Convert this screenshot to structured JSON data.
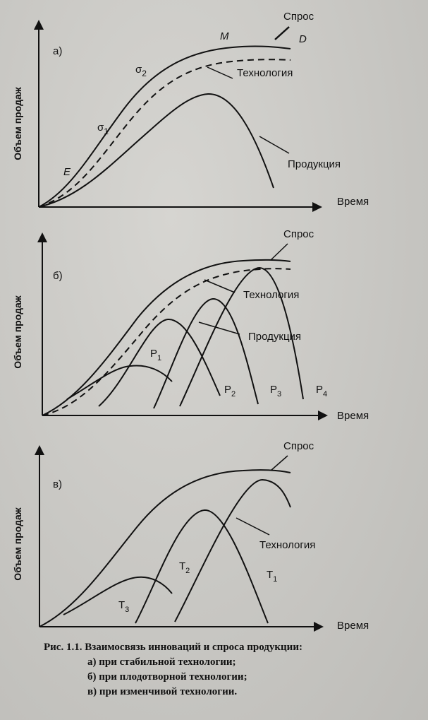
{
  "panels": [
    {
      "id": "a",
      "letter": "а)",
      "ylabel": "Объем продаж",
      "xlabel": "Время",
      "curve_labels": {
        "demand": "Спрос",
        "technology": "Технология",
        "product": "Продукция",
        "M": "M",
        "D": "D",
        "E": "E",
        "sigma1": "σ",
        "sigma1_sub": "1",
        "sigma2": "σ",
        "sigma2_sub": "2"
      }
    },
    {
      "id": "b",
      "letter": "б)",
      "ylabel": "Объем продаж",
      "xlabel": "Время",
      "curve_labels": {
        "demand": "Спрос",
        "technology": "Технология",
        "product": "Продукция",
        "P1": "P",
        "P1_sub": "1",
        "P2": "P",
        "P2_sub": "2",
        "P3": "P",
        "P3_sub": "3",
        "P4": "P",
        "P4_sub": "4"
      }
    },
    {
      "id": "c",
      "letter": "в)",
      "ylabel": "Объем продаж",
      "xlabel": "Время",
      "curve_labels": {
        "demand": "Спрос",
        "technology": "Технология",
        "T1": "T",
        "T1_sub": "1",
        "T2": "T",
        "T2_sub": "2",
        "T3": "T",
        "T3_sub": "3"
      }
    }
  ],
  "caption": {
    "title": "Рис. 1.1. Взаимосвязь инноваций и спроса продукции:",
    "items": [
      "а) при стабильной технологии;",
      "б) при плодотворной технологии;",
      "в) при изменчивой технологии."
    ]
  },
  "colors": {
    "ink": "#111111",
    "paper": "#cfceca"
  }
}
